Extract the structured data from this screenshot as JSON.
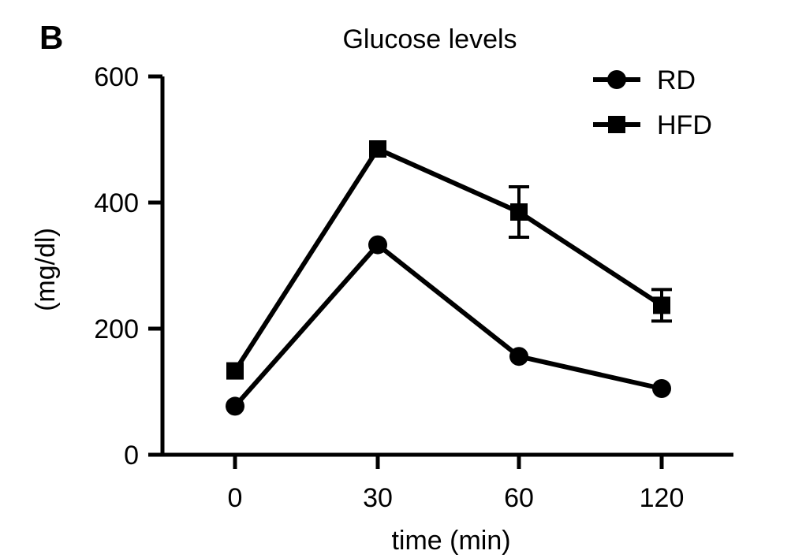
{
  "panel_label": "B",
  "chart_data": {
    "type": "line",
    "title": "Glucose levels",
    "xlabel": "time (min)",
    "ylabel": "(mg/dl)",
    "categories": [
      "0",
      "30",
      "60",
      "120"
    ],
    "ylim": [
      0,
      600
    ],
    "yticks": [
      0,
      200,
      400,
      600
    ],
    "grid": false,
    "legend_position": "top-right",
    "series": [
      {
        "name": "RD",
        "marker": "circle",
        "values": [
          77,
          333,
          156,
          105
        ],
        "errors": [
          0,
          0,
          0,
          0
        ]
      },
      {
        "name": "HFD",
        "marker": "square",
        "values": [
          133,
          485,
          385,
          237
        ],
        "errors": [
          0,
          0,
          40,
          25
        ]
      }
    ],
    "color": "#000000"
  }
}
